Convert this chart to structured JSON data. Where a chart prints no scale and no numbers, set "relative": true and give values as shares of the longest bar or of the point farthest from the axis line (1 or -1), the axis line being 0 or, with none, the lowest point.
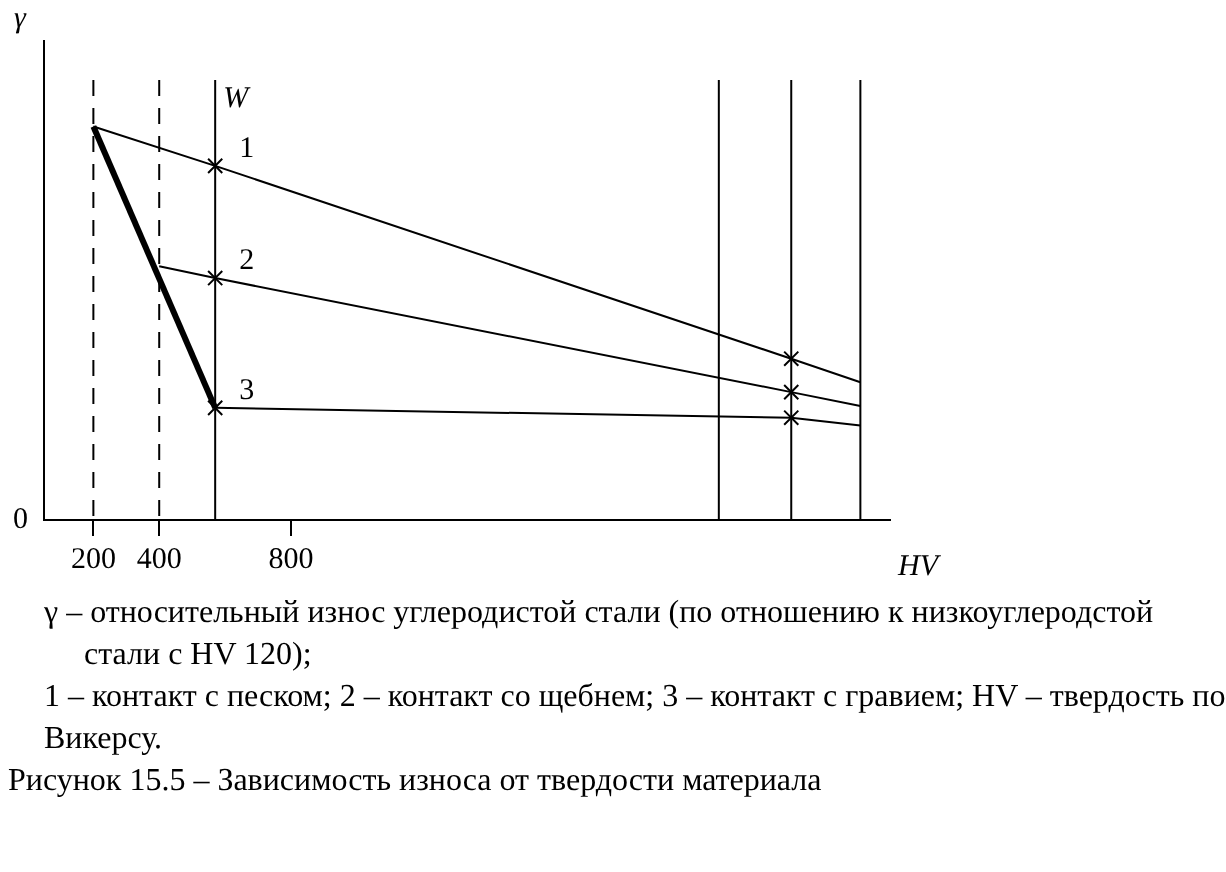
{
  "chart_data": {
    "type": "line",
    "title": "Рисунок 15.5 – Зависимость износа от твердости материала",
    "xlabel": "HV",
    "ylabel": "γ",
    "relative": true,
    "xlim": [
      50,
      2620
    ],
    "xticks": [
      200,
      400,
      800
    ],
    "grid": false,
    "legend": false,
    "marker": "cross",
    "line_style": "solid",
    "series": [
      {
        "name": "1",
        "color": "#000000",
        "x": [
          200,
          570,
          2320,
          2530
        ],
        "values": [
          1,
          0.9,
          0.41,
          0.35
        ]
      },
      {
        "name": "2",
        "color": "#000000",
        "x": [
          400,
          570,
          2320,
          2530
        ],
        "values": [
          0.645,
          0.615,
          0.325,
          0.29
        ]
      },
      {
        "name": "3",
        "color": "#000000",
        "x": [
          200,
          570,
          2320,
          2530
        ],
        "values": [
          1,
          0.285,
          0.26,
          0.24
        ]
      }
    ],
    "ref_lines": [
      {
        "axis": "x",
        "value": 200,
        "line_style": "dashed"
      },
      {
        "axis": "x",
        "value": 400,
        "line_style": "dashed"
      },
      {
        "axis": "x",
        "value": 570,
        "label": "W",
        "line_style": "solid"
      },
      {
        "axis": "x",
        "value": 2100,
        "line_style": "solid"
      },
      {
        "axis": "x",
        "value": 2320,
        "line_style": "solid"
      },
      {
        "axis": "x",
        "value": 2530,
        "line_style": "solid"
      }
    ],
    "annotations": [
      "0",
      "γ – относительный износ углеродистой стали (по отношению к низкоуглеродстой стали с HV 120);",
      "1 – контакт с песком; 2 – контакт со щебнем; 3 – контакт с гравием; HV – твердость по Викерсу."
    ]
  }
}
